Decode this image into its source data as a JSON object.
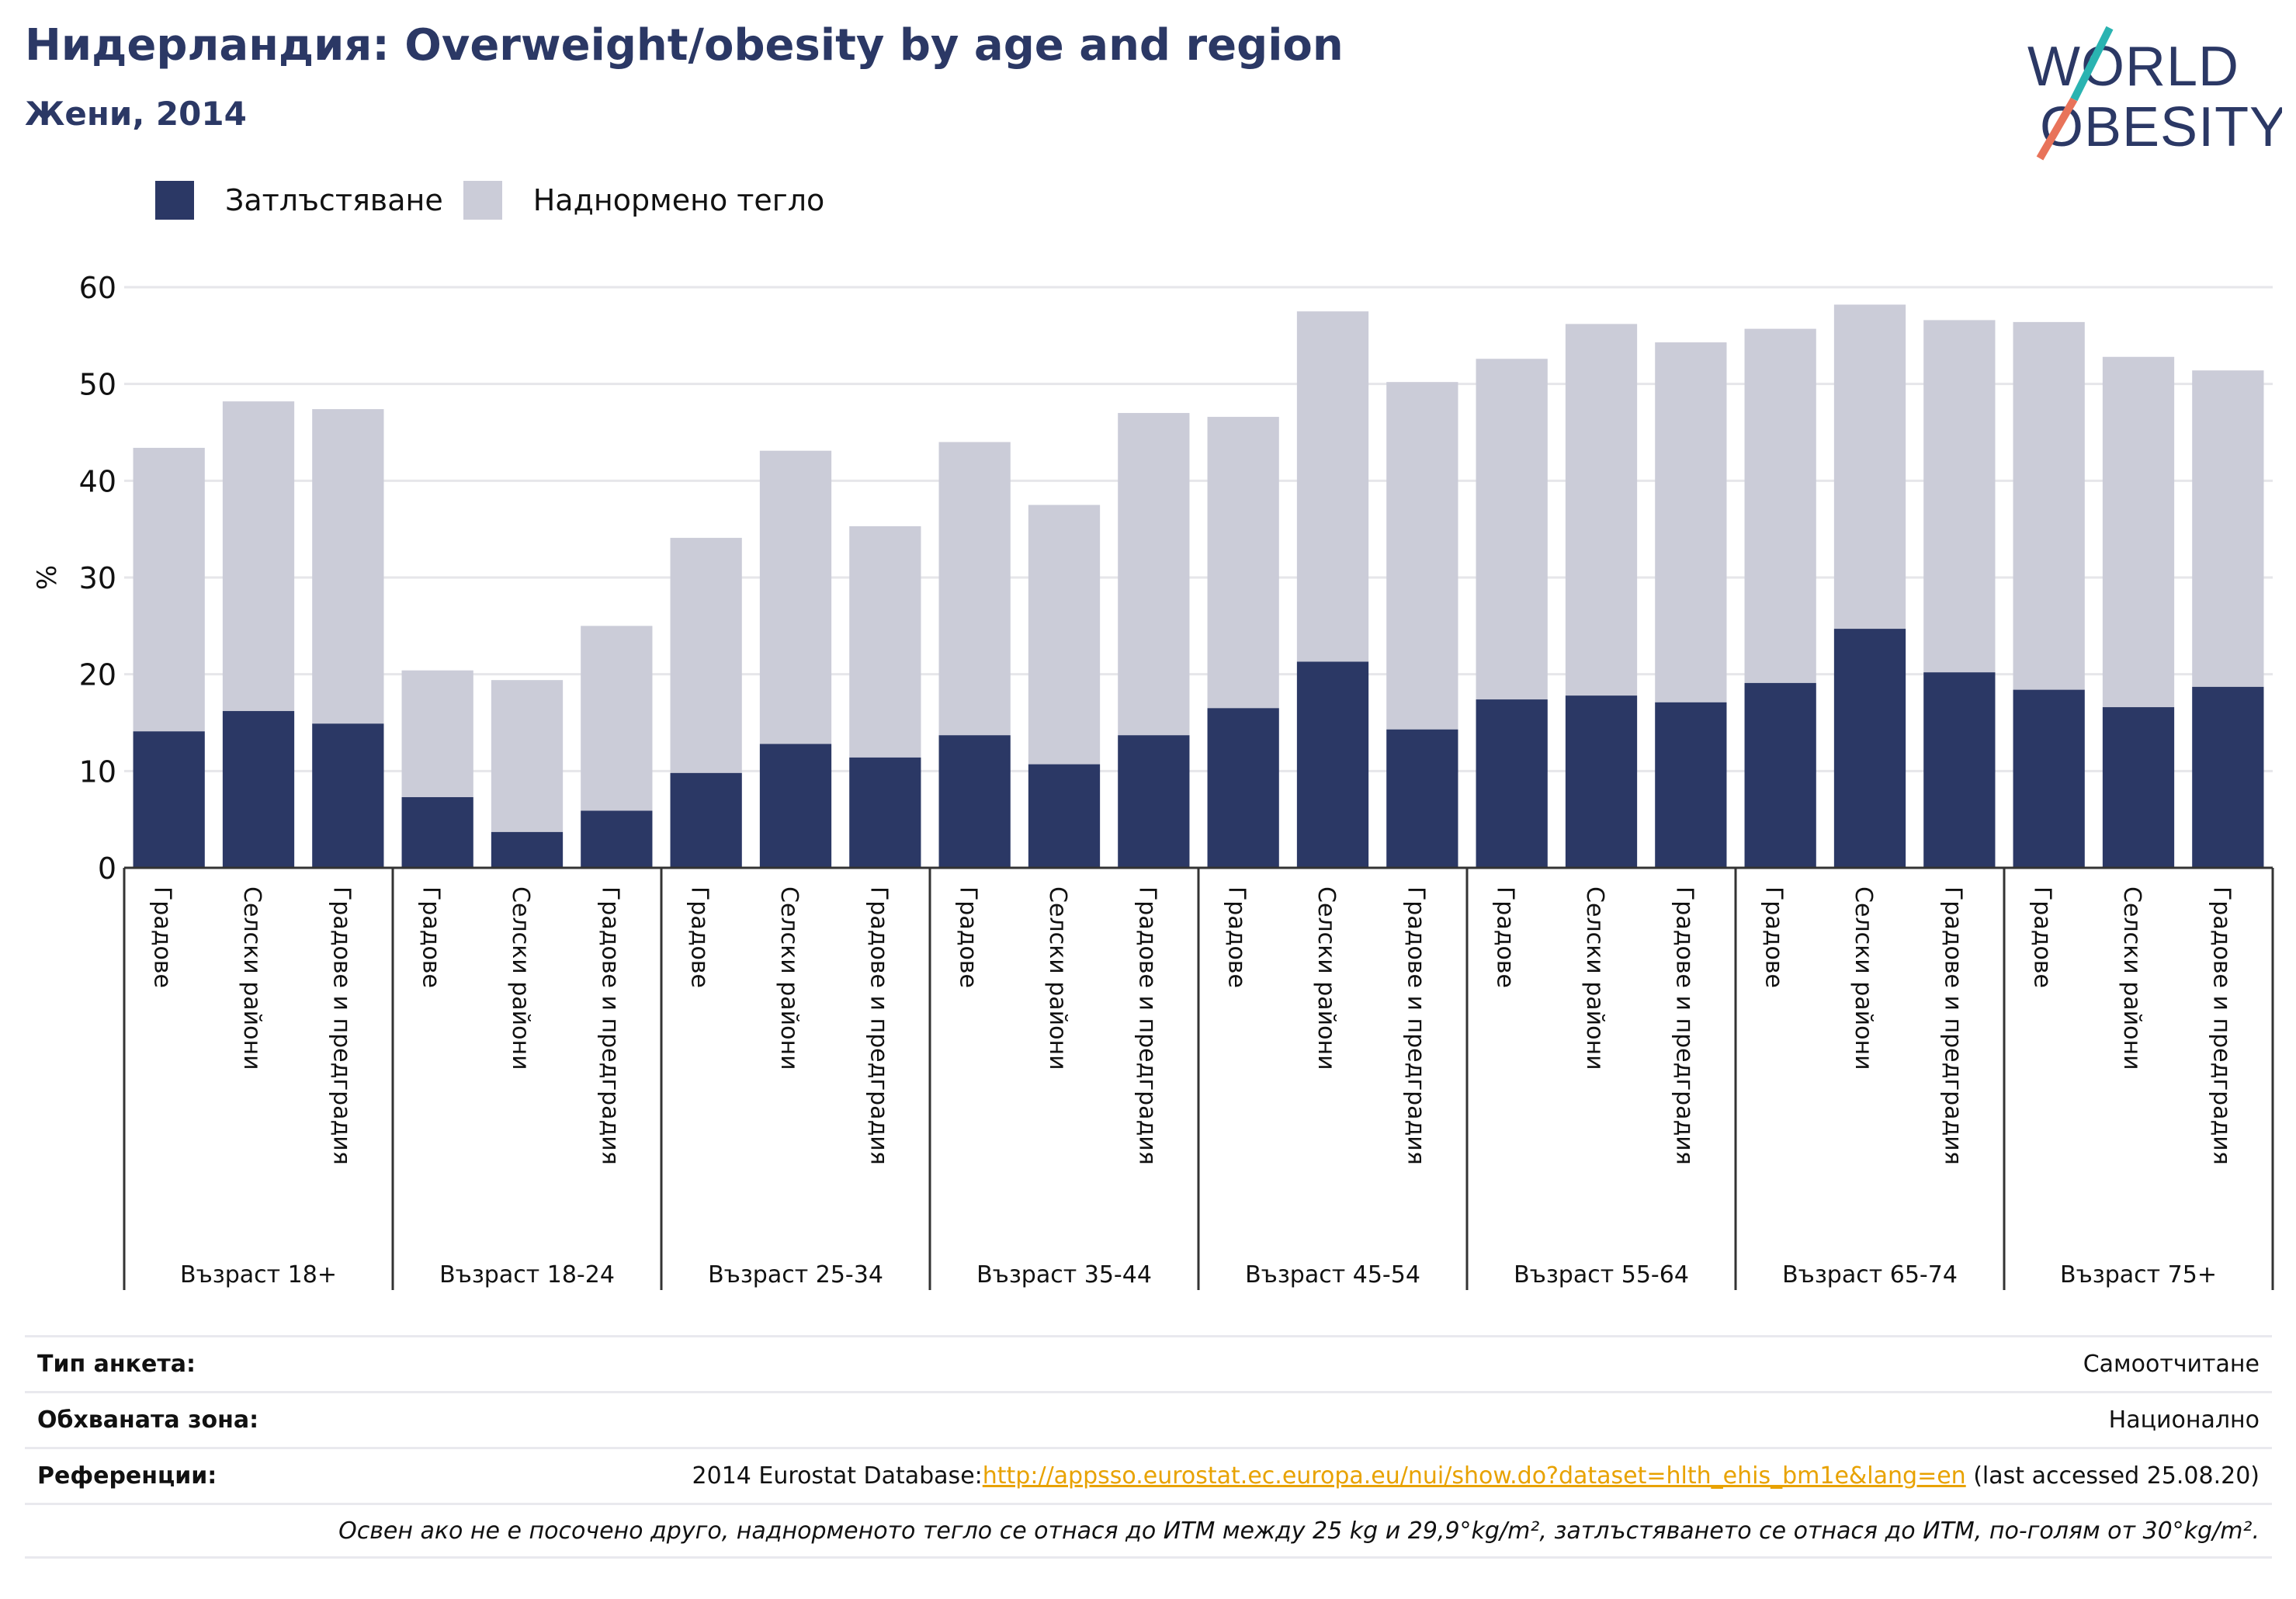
{
  "header": {
    "title": "Нидерландия: Overweight/obesity by age and region",
    "subtitle": "Жени, 2014"
  },
  "logo": {
    "line1": "WORLD",
    "line2": "OBESITY"
  },
  "legend": {
    "obesity": "Затлъстяване",
    "overweight": "Наднормено тегло"
  },
  "colors": {
    "obesity": "#2b3865",
    "overweight": "#cbccd8",
    "link": "#e8a200"
  },
  "chart_data": {
    "type": "bar",
    "stacked": true,
    "ylabel": "%",
    "ylim": [
      0,
      60
    ],
    "yticks": [
      0,
      10,
      20,
      30,
      40,
      50,
      60
    ],
    "grid": true,
    "legend_position": "top-left",
    "groups": [
      {
        "label": "Възраст 18+",
        "categories": [
          "Градове",
          "Селски райони",
          "Градове и предградия"
        ]
      },
      {
        "label": "Възраст 18-24",
        "categories": [
          "Градове",
          "Селски райони",
          "Градове и предградия"
        ]
      },
      {
        "label": "Възраст 25-34",
        "categories": [
          "Градове",
          "Селски райони",
          "Градове и предградия"
        ]
      },
      {
        "label": "Възраст 35-44",
        "categories": [
          "Градове",
          "Селски райони",
          "Градове и предградия"
        ]
      },
      {
        "label": "Възраст 45-54",
        "categories": [
          "Градове",
          "Селски райони",
          "Градове и предградия"
        ]
      },
      {
        "label": "Възраст 55-64",
        "categories": [
          "Градове",
          "Селски райони",
          "Градове и предградия"
        ]
      },
      {
        "label": "Възраст 65-74",
        "categories": [
          "Градове",
          "Селски райони",
          "Градове и предградия"
        ]
      },
      {
        "label": "Възраст 75+",
        "categories": [
          "Градове",
          "Селски райони",
          "Градове и предградия"
        ]
      }
    ],
    "series": [
      {
        "name": "Затлъстяване",
        "values": [
          14.1,
          16.2,
          14.9,
          7.3,
          3.7,
          5.9,
          9.8,
          12.8,
          11.4,
          13.7,
          10.7,
          13.7,
          16.5,
          21.3,
          14.3,
          17.4,
          17.8,
          17.1,
          19.1,
          24.7,
          20.2,
          18.4,
          16.6,
          18.7
        ]
      },
      {
        "name": "Наднормено тегло",
        "values": [
          29.3,
          32.0,
          32.5,
          13.1,
          15.7,
          19.1,
          24.3,
          30.3,
          23.9,
          30.3,
          26.8,
          33.3,
          30.1,
          36.2,
          35.9,
          35.2,
          38.4,
          37.2,
          36.6,
          33.5,
          36.4,
          38.0,
          36.2,
          32.7
        ]
      }
    ]
  },
  "footer": {
    "survey_label": "Тип анкета:",
    "survey_value": "Самоотчитане",
    "area_label": "Обхваната зона:",
    "area_value": "Национално",
    "refs_label": "Референции:",
    "refs_prefix": "2014 Eurostat Database:",
    "refs_link": "http://appsso.eurostat.ec.europa.eu/nui/show.do?dataset=hlth_ehis_bm1e&lang=en",
    "refs_suffix": " (last accessed 25.08.20)",
    "note": "Освен ако не е посочено друго, наднорменото тегло се отнася до ИТМ между 25 kg и 29,9°kg/m², затлъстяването се отнася до ИТМ, по-голям от 30°kg/m²."
  }
}
